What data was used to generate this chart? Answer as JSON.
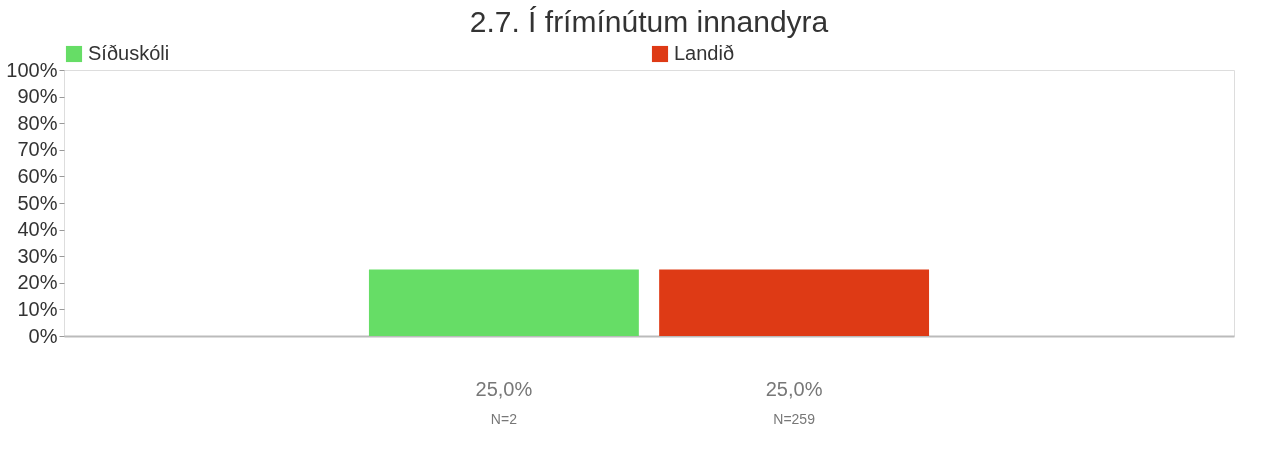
{
  "chart_data": {
    "type": "bar",
    "title": "2.7. Í frímínútum innandyra",
    "categories": [
      null
    ],
    "series": [
      {
        "name": "Síðuskóli",
        "color": "#66dd66",
        "values": [
          25
        ],
        "value_labels": [
          "25,0%"
        ]
      },
      {
        "name": "Landið",
        "color": "#de3a15",
        "values": [
          25
        ],
        "value_labels": [
          "25,0%"
        ]
      }
    ],
    "annotations": [
      "N=2",
      "N=259"
    ],
    "ylim": [
      0,
      100
    ],
    "yticks": [
      {
        "value": 0,
        "label": "0%"
      },
      {
        "value": 10,
        "label": "10%"
      },
      {
        "value": 20,
        "label": "20%"
      },
      {
        "value": 30,
        "label": "30%"
      },
      {
        "value": 40,
        "label": "40%"
      },
      {
        "value": 50,
        "label": "50%"
      },
      {
        "value": 60,
        "label": "60%"
      },
      {
        "value": 70,
        "label": "70%"
      },
      {
        "value": 80,
        "label": "80%"
      },
      {
        "value": 90,
        "label": "90%"
      },
      {
        "value": 100,
        "label": "100%"
      }
    ],
    "grid": false,
    "legend": "top left"
  }
}
